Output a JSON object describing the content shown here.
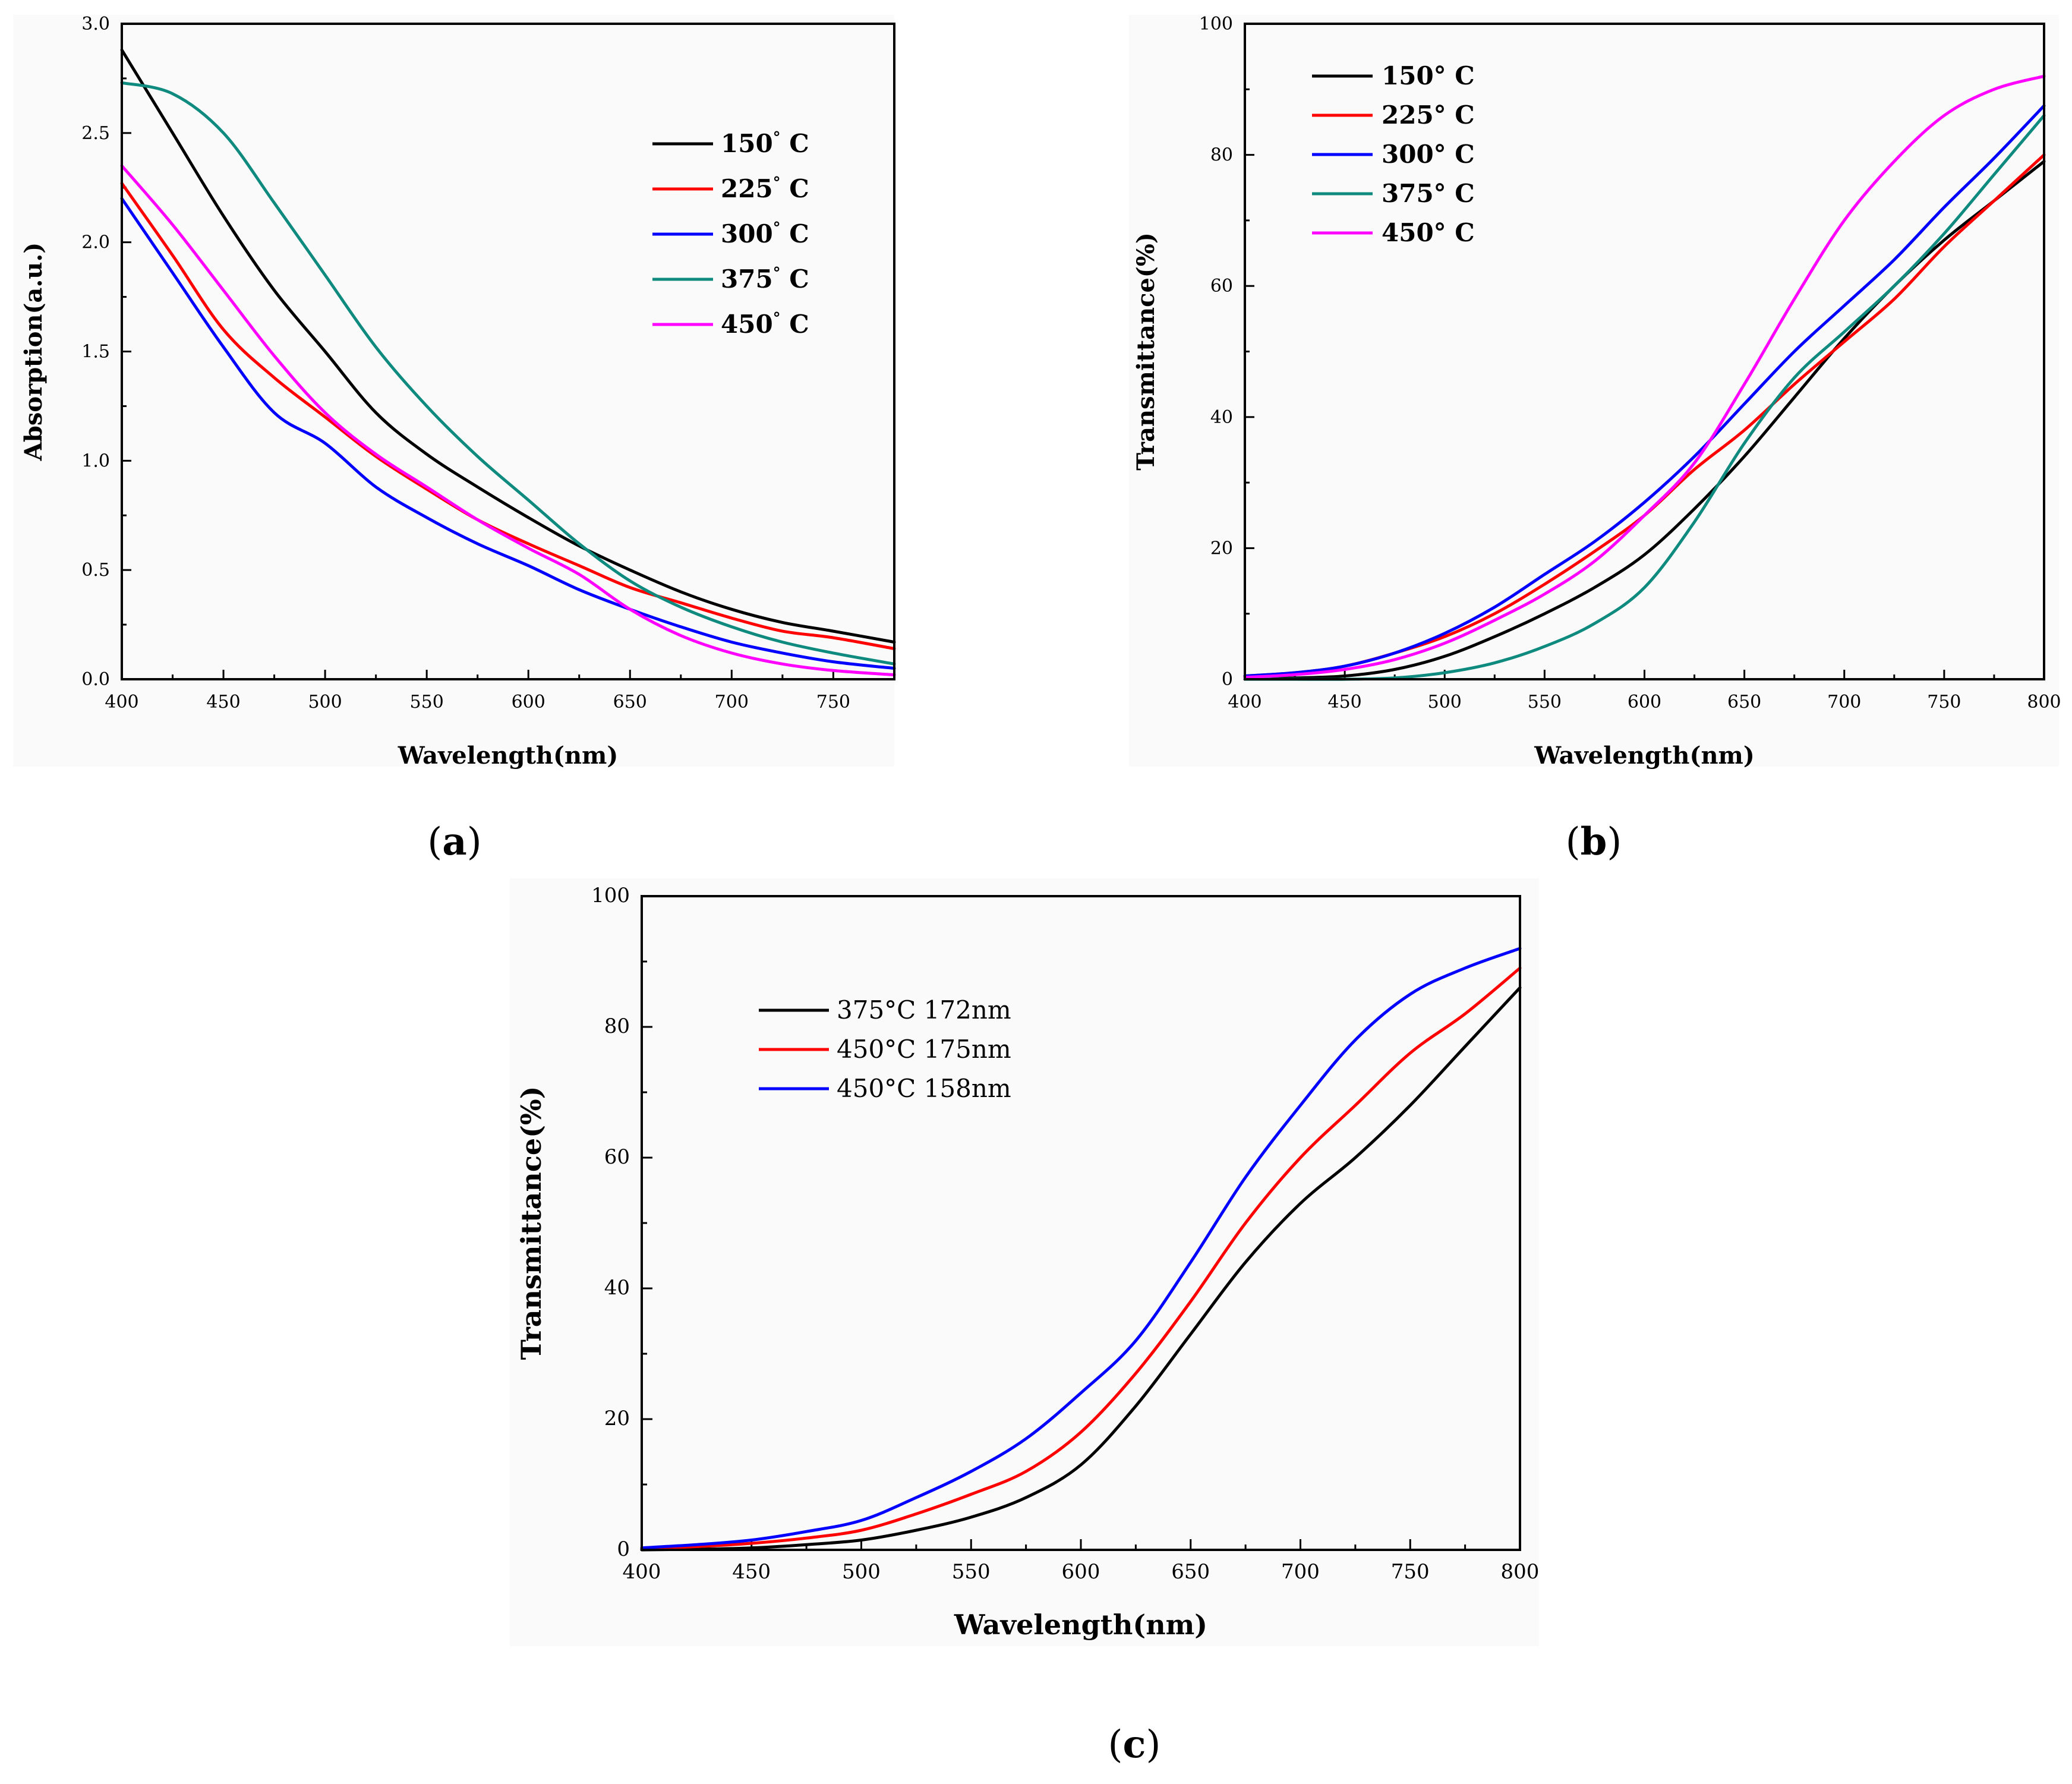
{
  "captions": {
    "a": "a",
    "b": "b",
    "c": "c"
  },
  "colors": {
    "black": "#000000",
    "red": "#ff0000",
    "blue": "#0000ff",
    "teal": "#0f8a7e",
    "magenta": "#ff00ff"
  },
  "chart_data": [
    {
      "type": "line",
      "panel": "a",
      "xlabel": "Wavelength(nm)",
      "ylabel": "Absorption(a.u.)",
      "xlim": [
        400,
        780
      ],
      "ylim": [
        0,
        3.0
      ],
      "xticks": [
        400,
        450,
        500,
        550,
        600,
        650,
        700,
        750
      ],
      "xtick_labels": [
        "400",
        "450",
        "500",
        "550",
        "600",
        "650",
        "700",
        "750"
      ],
      "yticks": [
        0,
        0.5,
        1.0,
        1.5,
        2.0,
        2.5,
        3.0
      ],
      "ytick_labels": [
        "0.0",
        "0.5",
        "1.0",
        "1.5",
        "2.0",
        "2.5",
        "3.0"
      ],
      "legend_position": "top-right",
      "x": [
        400,
        425,
        450,
        475,
        500,
        525,
        550,
        575,
        600,
        625,
        650,
        675,
        700,
        725,
        750,
        780
      ],
      "series": [
        {
          "name": "150° C",
          "label": "150",
          "unit": "C",
          "color": "#000000",
          "values": [
            2.88,
            2.5,
            2.12,
            1.78,
            1.5,
            1.22,
            1.03,
            0.88,
            0.74,
            0.61,
            0.5,
            0.4,
            0.32,
            0.26,
            0.22,
            0.17
          ]
        },
        {
          "name": "225° C",
          "label": "225",
          "unit": "C",
          "color": "#ff0000",
          "values": [
            2.27,
            1.94,
            1.6,
            1.38,
            1.2,
            1.02,
            0.87,
            0.73,
            0.62,
            0.52,
            0.42,
            0.35,
            0.28,
            0.22,
            0.19,
            0.14
          ]
        },
        {
          "name": "300° C",
          "label": "300",
          "unit": "C",
          "color": "#0000ff",
          "values": [
            2.2,
            1.86,
            1.52,
            1.22,
            1.08,
            0.88,
            0.74,
            0.62,
            0.52,
            0.41,
            0.32,
            0.24,
            0.17,
            0.12,
            0.08,
            0.05
          ]
        },
        {
          "name": "375° C",
          "label": "375",
          "unit": "C",
          "color": "#0f8a7e",
          "values": [
            2.73,
            2.68,
            2.5,
            2.18,
            1.85,
            1.52,
            1.25,
            1.02,
            0.82,
            0.62,
            0.45,
            0.33,
            0.24,
            0.17,
            0.12,
            0.07
          ]
        },
        {
          "name": "450° C",
          "label": "450",
          "unit": "C",
          "color": "#ff00ff",
          "values": [
            2.35,
            2.08,
            1.78,
            1.48,
            1.22,
            1.03,
            0.88,
            0.73,
            0.6,
            0.48,
            0.32,
            0.2,
            0.12,
            0.07,
            0.04,
            0.02
          ]
        }
      ]
    },
    {
      "type": "line",
      "panel": "b",
      "xlabel": "Wavelength(nm)",
      "ylabel": "Transmittance(%)",
      "xlim": [
        400,
        800
      ],
      "ylim": [
        0,
        100
      ],
      "xticks": [
        400,
        450,
        500,
        550,
        600,
        650,
        700,
        750,
        800
      ],
      "xtick_labels": [
        "400",
        "450",
        "500",
        "550",
        "600",
        "650",
        "700",
        "750",
        "800"
      ],
      "yticks": [
        0,
        20,
        40,
        60,
        80,
        100
      ],
      "ytick_labels": [
        "0",
        "20",
        "40",
        "60",
        "80",
        "100"
      ],
      "legend_position": "top-left",
      "x": [
        400,
        425,
        450,
        475,
        500,
        525,
        550,
        575,
        600,
        625,
        650,
        675,
        700,
        725,
        750,
        775,
        800
      ],
      "series": [
        {
          "name": "150° C",
          "label": "150°",
          "unit": "C",
          "color": "#000000",
          "values": [
            0,
            0.2,
            0.5,
            1.5,
            3.5,
            6.5,
            10,
            14,
            19,
            26,
            34,
            43,
            52,
            60,
            67,
            73,
            79
          ]
        },
        {
          "name": "225° C",
          "label": "225°",
          "unit": "C",
          "color": "#ff0000",
          "values": [
            0.5,
            1,
            2,
            4,
            6.5,
            10,
            14.5,
            19.5,
            25,
            32,
            38,
            45,
            51.5,
            58,
            66,
            73,
            80
          ]
        },
        {
          "name": "300° C",
          "label": "300°",
          "unit": "C",
          "color": "#0000ff",
          "values": [
            0.5,
            1,
            2,
            4,
            7,
            11,
            16,
            21,
            27,
            34,
            42,
            50,
            57,
            64,
            72,
            79.5,
            87.5
          ]
        },
        {
          "name": "375° C",
          "label": "375°",
          "unit": "C",
          "color": "#0f8a7e",
          "values": [
            0,
            0,
            0,
            0.2,
            1,
            2.5,
            5,
            8.5,
            14,
            24,
            36,
            46,
            53,
            60,
            68,
            77,
            86
          ]
        },
        {
          "name": "450° C",
          "label": "450°",
          "unit": "C",
          "color": "#ff00ff",
          "values": [
            0.3,
            0.7,
            1.5,
            3,
            5.5,
            9,
            13,
            18,
            25,
            33,
            45,
            58,
            70,
            79,
            86,
            90,
            92
          ]
        }
      ]
    },
    {
      "type": "line",
      "panel": "c",
      "xlabel": "Wavelength(nm)",
      "ylabel": "Transmittance(%)",
      "xlim": [
        400,
        800
      ],
      "ylim": [
        0,
        100
      ],
      "xticks": [
        400,
        450,
        500,
        550,
        600,
        650,
        700,
        750,
        800
      ],
      "xtick_labels": [
        "400",
        "450",
        "500",
        "550",
        "600",
        "650",
        "700",
        "750",
        "800"
      ],
      "yticks": [
        0,
        20,
        40,
        60,
        80,
        100
      ],
      "ytick_labels": [
        "0",
        "20",
        "40",
        "60",
        "80",
        "100"
      ],
      "legend_position": "top-left",
      "x": [
        400,
        425,
        450,
        475,
        500,
        525,
        550,
        575,
        600,
        625,
        650,
        675,
        700,
        725,
        750,
        775,
        800
      ],
      "series": [
        {
          "name": "375°C 172nm",
          "color": "#000000",
          "values": [
            0,
            0.1,
            0.3,
            0.8,
            1.5,
            3,
            5,
            8,
            13,
            22,
            33,
            44,
            53,
            60,
            68,
            77,
            86
          ]
        },
        {
          "name": "450°C 175nm",
          "color": "#ff0000",
          "values": [
            0.2,
            0.5,
            1,
            1.8,
            3,
            5.5,
            8.5,
            12,
            18,
            27,
            38,
            50,
            60,
            68,
            76,
            82,
            89
          ]
        },
        {
          "name": "450°C 158nm",
          "color": "#0000ff",
          "values": [
            0.3,
            0.8,
            1.5,
            2.8,
            4.5,
            8,
            12,
            17,
            24,
            32,
            44,
            57,
            68,
            78,
            85,
            89,
            92
          ]
        }
      ]
    }
  ]
}
